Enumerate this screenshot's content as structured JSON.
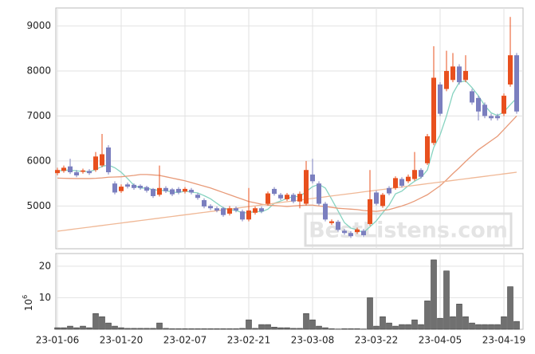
{
  "chart_data": {
    "type": "candlestick",
    "categories": [
      "23-01-06",
      null,
      null,
      null,
      null,
      null,
      null,
      null,
      null,
      null,
      "23-01-20",
      null,
      null,
      null,
      null,
      null,
      null,
      null,
      null,
      null,
      "23-02-07",
      null,
      null,
      null,
      null,
      null,
      null,
      null,
      null,
      null,
      "23-02-21",
      null,
      null,
      null,
      null,
      null,
      null,
      null,
      null,
      null,
      "23-03-08",
      null,
      null,
      null,
      null,
      null,
      null,
      null,
      null,
      null,
      "23-03-22",
      null,
      null,
      null,
      null,
      null,
      null,
      null,
      null,
      null,
      "23-04-05",
      null,
      null,
      null,
      null,
      null,
      null,
      null,
      null,
      null,
      "23-04-19",
      null,
      null
    ],
    "open": [
      5730,
      5780,
      5880,
      5750,
      5760,
      5780,
      5800,
      5900,
      6300,
      5500,
      5330,
      5480,
      5470,
      5450,
      5420,
      5380,
      5250,
      5400,
      5370,
      5380,
      5320,
      5360,
      5250,
      5130,
      5000,
      4950,
      4950,
      4830,
      4950,
      4880,
      4700,
      4850,
      4950,
      5050,
      5380,
      5250,
      5150,
      5250,
      5100,
      5050,
      5700,
      5500,
      5050,
      4620,
      4650,
      4450,
      4400,
      4420,
      4450,
      4600,
      5300,
      5000,
      5400,
      5400,
      5600,
      5550,
      5600,
      5800,
      5950,
      6400,
      7700,
      7600,
      7800,
      8100,
      7800,
      7550,
      7400,
      7250,
      7000,
      7000,
      7050,
      7700,
      8350
    ],
    "high": [
      5850,
      5900,
      6050,
      5800,
      5830,
      5820,
      6200,
      6600,
      6350,
      5550,
      5480,
      5520,
      5500,
      5480,
      5450,
      5400,
      5900,
      5440,
      5400,
      5420,
      5420,
      5400,
      5290,
      5170,
      5040,
      4990,
      4980,
      5000,
      4990,
      4920,
      5400,
      4990,
      4990,
      5320,
      5420,
      5290,
      5290,
      5290,
      5320,
      6000,
      6050,
      5550,
      5090,
      4700,
      4690,
      4490,
      4440,
      4520,
      4490,
      5800,
      5340,
      5290,
      5440,
      5660,
      5640,
      5700,
      6200,
      5840,
      6600,
      8550,
      7750,
      8450,
      8400,
      8150,
      8350,
      7600,
      7450,
      7300,
      7050,
      7050,
      7500,
      9200,
      8400
    ],
    "low": [
      5680,
      5740,
      5710,
      5640,
      5720,
      5690,
      5760,
      5860,
      5700,
      5260,
      5290,
      5390,
      5360,
      5360,
      5300,
      5180,
      5210,
      5290,
      5220,
      5260,
      5280,
      5260,
      5140,
      4950,
      4910,
      4860,
      4760,
      4790,
      4860,
      4660,
      4660,
      4810,
      4840,
      5010,
      5230,
      5130,
      5110,
      5060,
      4950,
      5010,
      5500,
      5010,
      4660,
      4580,
      4430,
      4360,
      4290,
      4380,
      4310,
      4560,
      5010,
      4960,
      5240,
      5360,
      5410,
      5510,
      5560,
      5610,
      5910,
      6350,
      7000,
      7550,
      7750,
      7700,
      7750,
      7250,
      6900,
      6950,
      6900,
      6900,
      7000,
      7650,
      7050
    ],
    "close": [
      5800,
      5850,
      5750,
      5680,
      5790,
      5730,
      6100,
      6150,
      5750,
      5300,
      5430,
      5430,
      5400,
      5400,
      5340,
      5220,
      5400,
      5330,
      5260,
      5300,
      5380,
      5300,
      5180,
      4990,
      4950,
      4900,
      4800,
      4950,
      4900,
      4700,
      4900,
      4950,
      4880,
      5280,
      5270,
      5170,
      5250,
      5100,
      5270,
      5800,
      5550,
      5050,
      4700,
      4660,
      4470,
      4400,
      4330,
      4480,
      4350,
      5150,
      5050,
      5250,
      5280,
      5620,
      5450,
      5650,
      5800,
      5650,
      6550,
      7850,
      7050,
      8000,
      8100,
      7750,
      8000,
      7300,
      7100,
      7000,
      6950,
      6950,
      7450,
      8350,
      7100
    ],
    "up_color": "#e8501e",
    "down_color": "#7b7fbf",
    "ylim": [
      4050,
      9400
    ],
    "yticks": [
      5000,
      6000,
      7000,
      8000,
      9000
    ],
    "grid": true,
    "moving_averages": [
      {
        "color": "#86d3c0",
        "values": [
          5780,
          5790,
          5800,
          5780,
          5770,
          5760,
          5810,
          5880,
          5910,
          5850,
          5750,
          5610,
          5460,
          5400,
          5400,
          5360,
          5350,
          5340,
          5310,
          5300,
          5330,
          5310,
          5290,
          5230,
          5160,
          5060,
          4960,
          4920,
          4900,
          4850,
          4850,
          4880,
          4870,
          4930,
          5060,
          5110,
          5170,
          5210,
          5210,
          5320,
          5430,
          5480,
          5400,
          5150,
          4890,
          4630,
          4510,
          4470,
          4410,
          4540,
          4670,
          4850,
          5020,
          5270,
          5330,
          5450,
          5550,
          5630,
          5800,
          6300,
          6580,
          7000,
          7500,
          7750,
          7780,
          7630,
          7450,
          7230,
          7070,
          7010,
          7090,
          7250,
          7400
        ]
      },
      {
        "color": "#e89a78",
        "values": [
          5620,
          5615,
          5612,
          5610,
          5610,
          5610,
          5615,
          5625,
          5640,
          5645,
          5650,
          5665,
          5680,
          5700,
          5700,
          5690,
          5680,
          5650,
          5620,
          5590,
          5560,
          5520,
          5480,
          5440,
          5400,
          5350,
          5300,
          5250,
          5200,
          5150,
          5100,
          5070,
          5040,
          5020,
          5010,
          5000,
          4990,
          5000,
          5010,
          5020,
          5020,
          5000,
          4990,
          4970,
          4950,
          4940,
          4930,
          4920,
          4900,
          4890,
          4880,
          4900,
          4920,
          4960,
          5000,
          5050,
          5110,
          5180,
          5250,
          5350,
          5450,
          5580,
          5720,
          5850,
          5990,
          6120,
          6250,
          6350,
          6450,
          6550,
          6700,
          6850,
          7000
        ]
      },
      {
        "color": "#f0b896",
        "values": [
          4440,
          4458,
          4476,
          4495,
          4513,
          4531,
          4549,
          4567,
          4586,
          4604,
          4622,
          4640,
          4658,
          4677,
          4695,
          4713,
          4731,
          4749,
          4768,
          4786,
          4804,
          4822,
          4840,
          4859,
          4877,
          4895,
          4913,
          4931,
          4950,
          4968,
          4986,
          5004,
          5022,
          5041,
          5059,
          5077,
          5095,
          5113,
          5132,
          5150,
          5168,
          5186,
          5204,
          5223,
          5241,
          5259,
          5277,
          5295,
          5314,
          5332,
          5350,
          5368,
          5386,
          5405,
          5423,
          5441,
          5459,
          5477,
          5496,
          5514,
          5532,
          5550,
          5568,
          5587,
          5605,
          5623,
          5641,
          5659,
          5678,
          5696,
          5714,
          5732,
          5750
        ]
      }
    ],
    "volume": {
      "color": "#707070",
      "label": "10",
      "exponent": "6",
      "ylim": [
        0,
        24
      ],
      "yticks": [
        10,
        20
      ],
      "values": [
        0.5,
        0.5,
        1,
        0.5,
        1,
        0.5,
        5,
        4,
        2,
        1,
        0.5,
        0.3,
        0.3,
        0.3,
        0.3,
        0.3,
        2,
        0.3,
        0.2,
        0.2,
        0.2,
        0.2,
        0.2,
        0.2,
        0.2,
        0.2,
        0.2,
        0.2,
        0.2,
        0.3,
        3,
        0.3,
        1.5,
        1.5,
        0.7,
        0.5,
        0.5,
        0.3,
        0.3,
        5,
        3,
        1,
        0.5,
        0.2,
        0.1,
        0.2,
        0.2,
        0.2,
        0.1,
        10,
        1,
        4,
        2,
        1,
        1.5,
        1.5,
        3,
        1.5,
        9,
        22,
        3.5,
        18.5,
        4,
        8,
        4,
        2,
        1.5,
        1.5,
        1.5,
        1.5,
        4,
        13.5,
        2.5
      ]
    },
    "watermark": "BestListens.com"
  }
}
